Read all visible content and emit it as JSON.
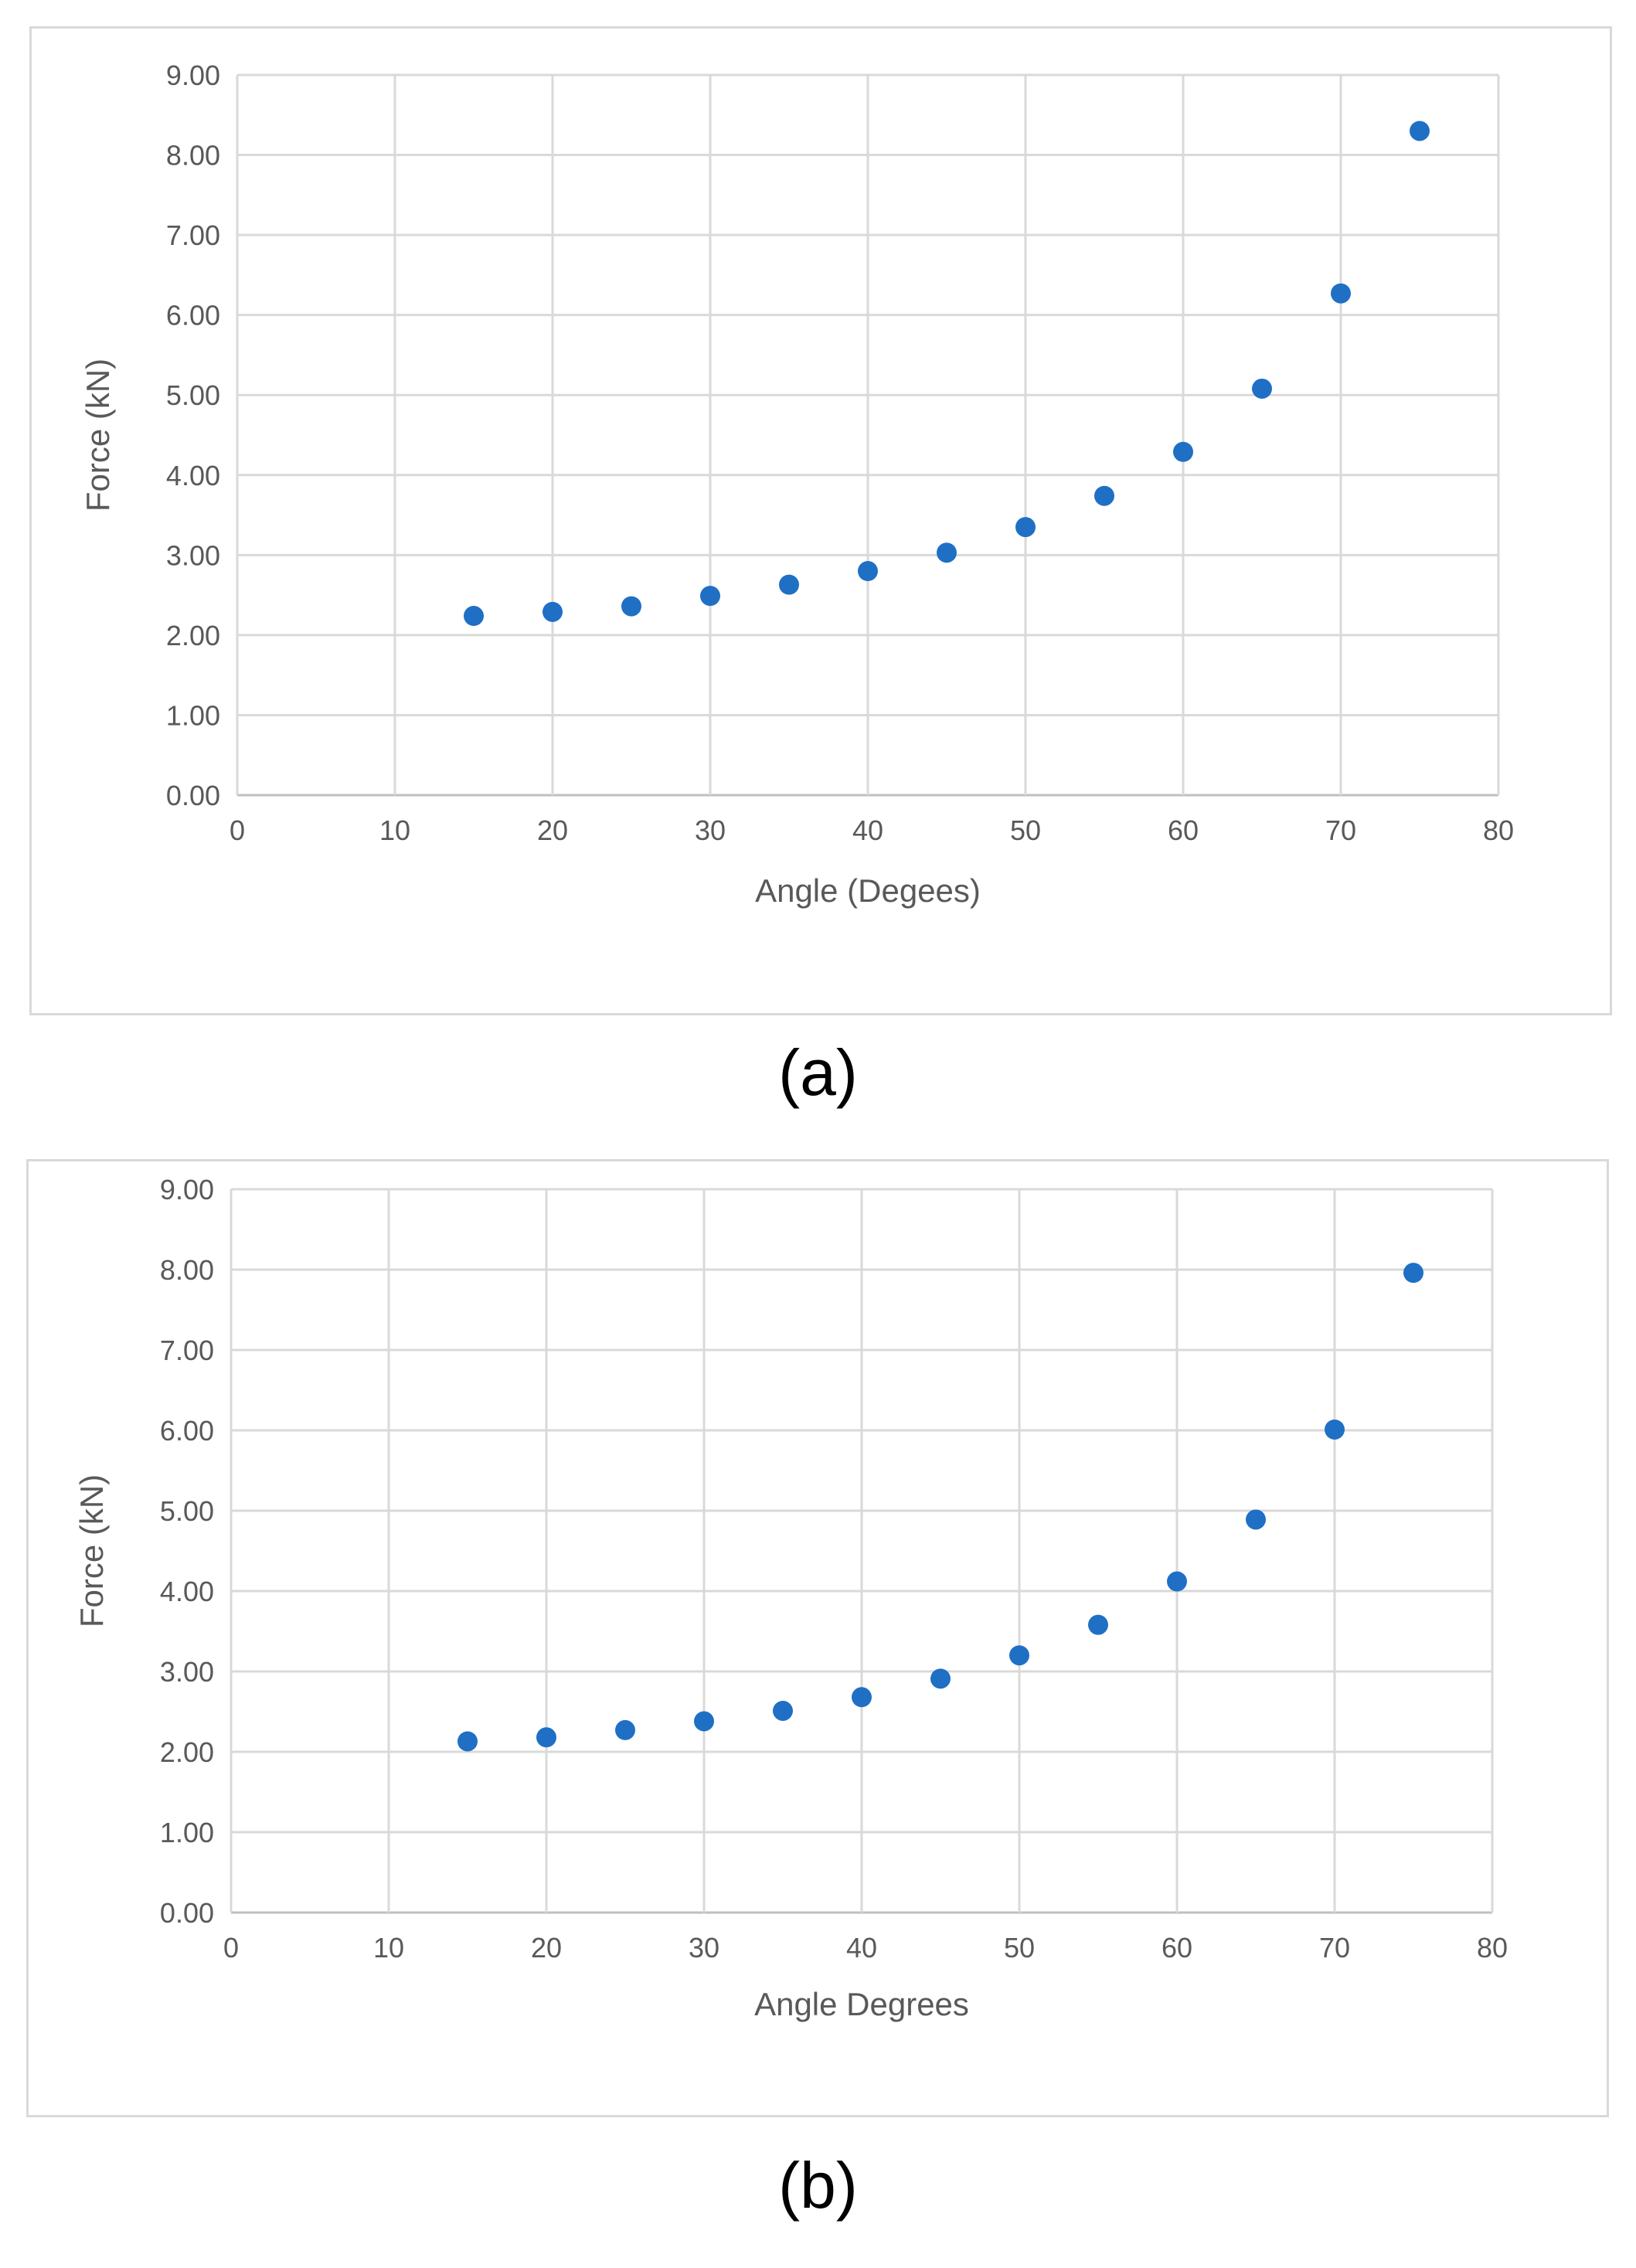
{
  "chart_data": [
    {
      "type": "scatter",
      "title": "",
      "xlabel": "Angle (Degees)",
      "ylabel": "Force (kN)",
      "xlim": [
        0,
        80
      ],
      "ylim": [
        0,
        9
      ],
      "x_ticks": [
        "0",
        "10",
        "20",
        "30",
        "40",
        "50",
        "60",
        "70",
        "80"
      ],
      "y_ticks": [
        "0.00",
        "1.00",
        "2.00",
        "3.00",
        "4.00",
        "5.00",
        "6.00",
        "7.00",
        "8.00",
        "9.00"
      ],
      "grid": true,
      "color": "#1f6fc5",
      "x": [
        15,
        20,
        25,
        30,
        35,
        40,
        45,
        50,
        55,
        60,
        65,
        70,
        75
      ],
      "y": [
        2.24,
        2.29,
        2.36,
        2.49,
        2.63,
        2.8,
        3.03,
        3.35,
        3.74,
        4.29,
        5.08,
        6.27,
        8.3
      ]
    },
    {
      "type": "scatter",
      "title": "",
      "xlabel": "Angle Degrees",
      "ylabel": "Force (kN)",
      "xlim": [
        0,
        80
      ],
      "ylim": [
        0,
        9
      ],
      "x_ticks": [
        "0",
        "10",
        "20",
        "30",
        "40",
        "50",
        "60",
        "70",
        "80"
      ],
      "y_ticks": [
        "0.00",
        "1.00",
        "2.00",
        "3.00",
        "4.00",
        "5.00",
        "6.00",
        "7.00",
        "8.00",
        "9.00"
      ],
      "grid": true,
      "color": "#1f6fc5",
      "x": [
        15,
        20,
        25,
        30,
        35,
        40,
        45,
        50,
        55,
        60,
        65,
        70,
        75
      ],
      "y": [
        2.13,
        2.18,
        2.27,
        2.38,
        2.51,
        2.68,
        2.91,
        3.2,
        3.58,
        4.12,
        4.89,
        6.01,
        7.96
      ]
    }
  ],
  "captions": [
    "(a)",
    "(b)"
  ]
}
